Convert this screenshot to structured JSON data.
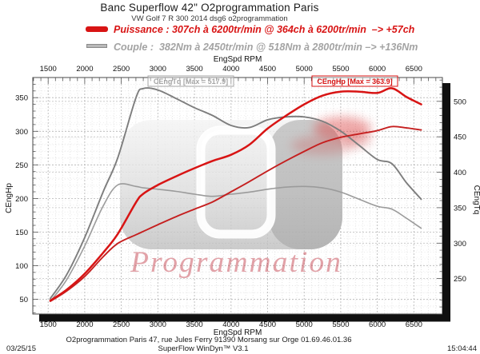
{
  "header": {
    "title": "Banc Superflow 42\" O2programmation Paris",
    "subtitle": "VW Golf 7 R 300 2014 dsg6 o2programmation"
  },
  "legend": {
    "power": {
      "label": "Puissance : 307ch à 6200tr/min @ 364ch à 6200tr/min  –> +57ch",
      "color": "#d81414"
    },
    "torque": {
      "label": "Couple :  382Nm à 2450tr/min @ 518Nm à 2800tr/min –> +136Nm",
      "color": "#a3a3a3"
    }
  },
  "watermark": {
    "script_text": "Programmation"
  },
  "footer": {
    "address": "O2programmation Paris 47, rue Jules Ferry 91390 Morsang sur Orge 01.69.46.01.36",
    "software": "SuperFlow WinDyn™ V3.1",
    "date": "03/25/15",
    "time": "15:04:44"
  },
  "chart_data": {
    "type": "line",
    "x_label_top": "EngSpd RPM",
    "x_label_bottom": "EngSpd RPM",
    "y_left_label": "CEngHp",
    "y_right_label": "CEngTq",
    "x_range": [
      1290,
      6890
    ],
    "x_ticks": [
      1500,
      2000,
      2500,
      3000,
      3500,
      4000,
      4500,
      5000,
      5500,
      6000,
      6500
    ],
    "x_minor_step": 100,
    "y_left_range": [
      28,
      380
    ],
    "y_left_ticks": [
      50,
      100,
      150,
      200,
      250,
      300,
      350
    ],
    "y_left_minor_step": 10,
    "y_right_range": [
      200,
      533.6
    ],
    "y_right_ticks": [
      250,
      300,
      350,
      400,
      450,
      500
    ],
    "y_right_minor_step": 10,
    "grid": true,
    "rpm": [
      1530,
      1750,
      2000,
      2250,
      2450,
      2700,
      2800,
      3000,
      3250,
      3500,
      3750,
      4000,
      4250,
      4500,
      4750,
      5000,
      5250,
      5500,
      5750,
      6000,
      6200,
      6400,
      6600
    ],
    "series": [
      {
        "name": "torque-stock",
        "axis": "right",
        "unit": "Nm",
        "color": "#9b9b9b",
        "width": 1.6,
        "values": [
          218,
          248,
          296,
          352,
          382,
          380,
          378,
          376,
          373,
          369,
          366,
          369,
          372,
          376,
          379,
          380,
          378,
          372,
          362,
          352,
          348,
          335,
          321
        ]
      },
      {
        "name": "torque-tuned",
        "axis": "right",
        "unit": "Nm",
        "color": "#7d7d7d",
        "width": 1.9,
        "values": [
          222,
          255,
          308,
          372,
          420,
          505,
          518,
          516,
          504,
          491,
          480,
          466,
          463,
          474,
          478,
          478,
          472,
          458,
          438,
          418,
          412,
          385,
          362
        ]
      },
      {
        "name": "power-stock",
        "axis": "left",
        "unit": "ch",
        "color": "#c51f1f",
        "width": 1.9,
        "values": [
          47,
          62,
          84,
          113,
          133,
          146,
          151,
          161,
          173,
          184,
          195,
          210,
          225,
          241,
          256,
          270,
          283,
          291,
          296,
          301,
          307,
          305,
          302
        ]
      },
      {
        "name": "power-tuned",
        "axis": "left",
        "unit": "ch",
        "color": "#d81414",
        "width": 2.5,
        "values": [
          48,
          64,
          88,
          119,
          147,
          194,
          207,
          220,
          233,
          245,
          256,
          265,
          280,
          304,
          323,
          340,
          353,
          359,
          359,
          357,
          364,
          351,
          340
        ]
      }
    ],
    "peaks": {
      "power_stock": {
        "value_ch": 307,
        "rpm": 6200
      },
      "power_tuned": {
        "value_ch": 364,
        "rpm": 6200
      },
      "power_gain_ch": 57,
      "torque_stock": {
        "value_nm": 382,
        "rpm": 2450
      },
      "torque_tuned": {
        "value_nm": 518,
        "rpm": 2800
      },
      "torque_gain_nm": 136
    },
    "annotations": [
      {
        "text": "CEngTq [Max = 517.9]",
        "color": "#a5a5a5",
        "rpm": 2865
      },
      {
        "text": "CEngHp [Max = 363.9]",
        "color": "#d81414",
        "rpm": 5107
      }
    ]
  }
}
